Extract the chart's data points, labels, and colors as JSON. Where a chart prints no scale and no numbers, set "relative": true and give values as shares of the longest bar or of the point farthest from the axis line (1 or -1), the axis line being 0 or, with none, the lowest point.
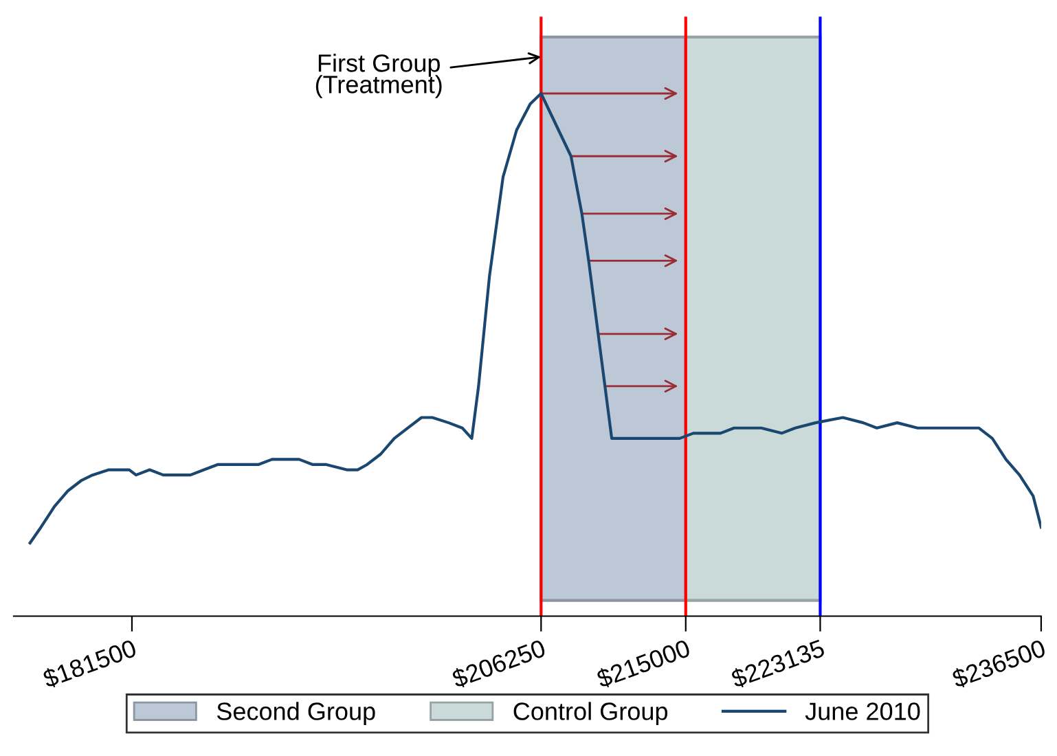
{
  "chart_data": {
    "type": "line",
    "relative": true,
    "x": [
      175335,
      175993,
      176815,
      177637,
      178460,
      179117,
      180104,
      181337,
      181748,
      182571,
      183393,
      184215,
      185037,
      185859,
      186682,
      187504,
      188326,
      189148,
      189970,
      190793,
      191615,
      192437,
      193259,
      194493,
      195150,
      195726,
      196548,
      197370,
      198192,
      199015,
      199672,
      200659,
      201481,
      202057,
      202468,
      203126,
      203948,
      204770,
      205592,
      206250,
      208059,
      208717,
      209128,
      209703,
      210114,
      210525,
      211348,
      212992,
      214636,
      215459,
      216281,
      217103,
      217925,
      219570,
      220803,
      221625,
      222858,
      224503,
      225736,
      226558,
      227792,
      229025,
      229436,
      230258,
      231903,
      232725,
      233547,
      234369,
      235191,
      236014,
      236500
    ],
    "series": [
      {
        "name": "June 2010",
        "color": "#1a476f",
        "values": [
          0.14,
          0.17,
          0.21,
          0.24,
          0.26,
          0.27,
          0.28,
          0.28,
          0.27,
          0.28,
          0.27,
          0.27,
          0.27,
          0.28,
          0.29,
          0.29,
          0.29,
          0.29,
          0.3,
          0.3,
          0.3,
          0.29,
          0.29,
          0.28,
          0.28,
          0.29,
          0.31,
          0.34,
          0.36,
          0.38,
          0.38,
          0.37,
          0.36,
          0.34,
          0.44,
          0.65,
          0.84,
          0.93,
          0.98,
          1.0,
          0.88,
          0.77,
          0.68,
          0.54,
          0.44,
          0.34,
          0.34,
          0.34,
          0.34,
          0.35,
          0.35,
          0.35,
          0.36,
          0.36,
          0.35,
          0.36,
          0.37,
          0.38,
          0.37,
          0.36,
          0.37,
          0.36,
          0.36,
          0.36,
          0.36,
          0.36,
          0.34,
          0.3,
          0.27,
          0.23,
          0.17
        ]
      }
    ],
    "xlim": [
      174350,
      236500
    ],
    "xticks": [
      {
        "value": 181500,
        "label": "$181500"
      },
      {
        "value": 206250,
        "label": "$206250"
      },
      {
        "value": 215000,
        "label": "$215000"
      },
      {
        "value": 223135,
        "label": "$223135"
      },
      {
        "value": 236500,
        "label": "$236500"
      }
    ],
    "bands": [
      {
        "axis": "x",
        "from": 206250,
        "to": 215000,
        "label": "Second Group",
        "color": "#bcc8d6"
      },
      {
        "axis": "x",
        "from": 215000,
        "to": 223135,
        "label": "Control Group",
        "color": "#c9dad9"
      }
    ],
    "ref_lines": [
      {
        "axis": "x",
        "value": 206250,
        "color": "#ff0000"
      },
      {
        "axis": "x",
        "value": 215000,
        "color": "#ff0000"
      },
      {
        "axis": "x",
        "value": 223135,
        "color": "#0000ff"
      }
    ],
    "annotations": [
      {
        "text": "First Group\n(Treatment)",
        "x": 206250,
        "y": 1.07
      }
    ],
    "legend": "bottom",
    "grid": false
  }
}
